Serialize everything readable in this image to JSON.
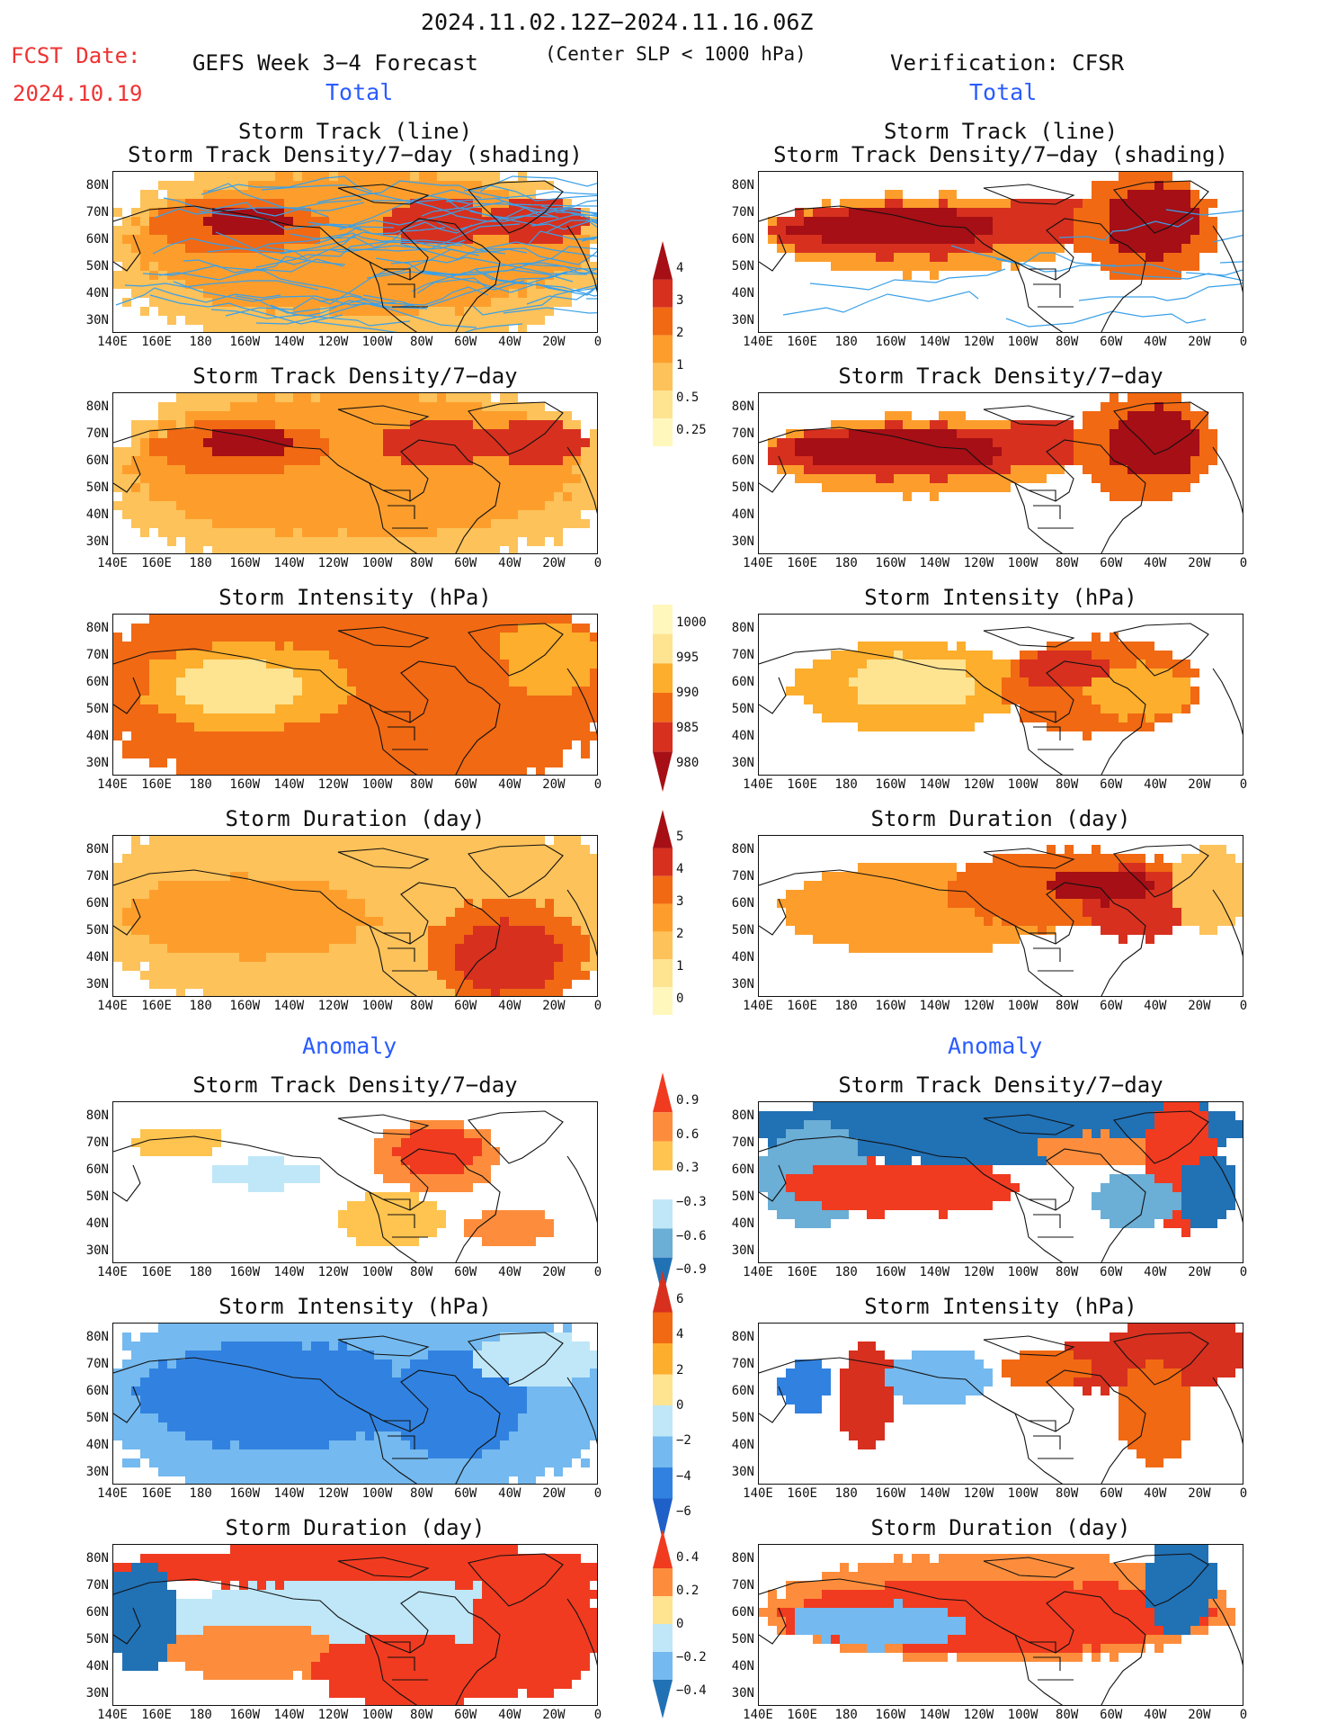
{
  "header": {
    "date_range": "2024.11.02.12Z−2024.11.16.06Z",
    "fcst_label": "FCST Date:",
    "fcst_date": "2024.10.19",
    "forecast_title": "GEFS Week 3−4 Forecast",
    "center_slp": "(Center SLP < 1000 hPa)",
    "verification": "Verification: CFSR"
  },
  "sections": {
    "total_left": "Total",
    "total_right": "Total",
    "anomaly_left": "Anomaly",
    "anomaly_right": "Anomaly"
  },
  "panel_titles": {
    "track_line": "Storm Track (line)",
    "track_density_shading": "Storm Track Density/7−day (shading)",
    "track_density": "Storm Track Density/7−day",
    "intensity": "Storm Intensity (hPa)",
    "duration": "Storm Duration (day)"
  },
  "axes": {
    "lat_labels": [
      "80N",
      "70N",
      "60N",
      "50N",
      "40N",
      "30N"
    ],
    "lon_labels": [
      "140E",
      "160E",
      "180",
      "160W",
      "140W",
      "120W",
      "100W",
      "80W",
      "60W",
      "40W",
      "20W",
      "0"
    ]
  },
  "colorbars": {
    "density": {
      "labels": [
        "4",
        "3",
        "2",
        "1",
        "0.5",
        "0.25"
      ],
      "colors": [
        "#a50f15",
        "#d7301f",
        "#f16913",
        "#fd9e2c",
        "#fdc25a",
        "#fee391",
        "#fff7bc"
      ]
    },
    "intensity": {
      "labels": [
        "1000",
        "995",
        "990",
        "985",
        "980"
      ],
      "colors": [
        "#fff7bc",
        "#fee391",
        "#fdae2c",
        "#f16913",
        "#d7301f",
        "#a50f15"
      ]
    },
    "duration": {
      "labels": [
        "5",
        "4",
        "3",
        "2",
        "1",
        "0"
      ],
      "colors": [
        "#a50f15",
        "#d7301f",
        "#f16913",
        "#fd9e2c",
        "#fdc25a",
        "#fee391",
        "#fff7bc"
      ]
    },
    "anom_density": {
      "labels": [
        "0.9",
        "0.6",
        "0.3",
        "−0.3",
        "−0.6",
        "−0.9"
      ],
      "colors": [
        "#f03b20",
        "#fd8d3c",
        "#fec44f",
        "#ffffff",
        "#bfe7f8",
        "#6baed6",
        "#2171b5"
      ]
    },
    "anom_intensity": {
      "labels": [
        "6",
        "4",
        "2",
        "0",
        "−2",
        "−4",
        "−6"
      ],
      "colors": [
        "#d7301f",
        "#f16913",
        "#fdae2c",
        "#fee391",
        "#bfe7f8",
        "#74b9ef",
        "#3182e0",
        "#1f5fc8"
      ]
    },
    "anom_duration": {
      "labels": [
        "0.4",
        "0.2",
        "0",
        "−0.2",
        "−0.4"
      ],
      "colors": [
        "#f03b20",
        "#fd8d3c",
        "#fee391",
        "#bfe7f8",
        "#74b9ef",
        "#2171b5"
      ]
    }
  }
}
